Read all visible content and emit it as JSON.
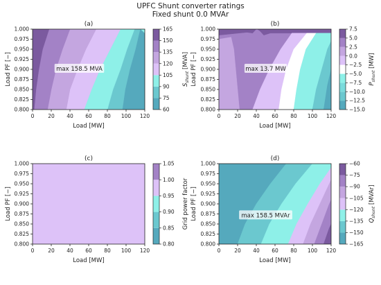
{
  "figure": {
    "title_line1": "UPFC Shunt converter ratings",
    "title_line2": "Fixed shunt 0.0 MVAr"
  },
  "colors": {
    "dark_purple": "#7b5a9f",
    "mid_purple": "#a382c6",
    "light_purple": "#c4a6e0",
    "lavender": "#ddc2f8",
    "white": "#ffffff",
    "aqua": "#8ef0e8",
    "teal": "#6bc8cf",
    "deep_teal": "#55a9bd"
  },
  "chart_data": [
    {
      "id": "a",
      "type": "contour",
      "panel_label": "(a)",
      "xlabel": "Load [MW]",
      "ylabel": "Load PF [−]",
      "xlim": [
        0,
        120
      ],
      "ylim": [
        0.8,
        1.0
      ],
      "xticks": [
        "0",
        "20",
        "40",
        "60",
        "80",
        "100",
        "120"
      ],
      "yticks": [
        "0.800",
        "0.825",
        "0.850",
        "0.875",
        "0.900",
        "0.925",
        "0.950",
        "0.975",
        "1.000"
      ],
      "annotation": "max 158.5 MVA",
      "annotation_at": [
        50,
        0.9
      ],
      "colorbar": {
        "label_main": "S",
        "label_sub": "shunt",
        "label_unit": " [MVA]",
        "ticks": [
          "60",
          "75",
          "90",
          "105",
          "120",
          "135",
          "150",
          "165"
        ],
        "range": [
          60,
          165
        ],
        "bands": [
          {
            "from": 60,
            "to": 75,
            "color": "#55a9bd"
          },
          {
            "from": 75,
            "to": 90,
            "color": "#6bc8cf"
          },
          {
            "from": 90,
            "to": 105,
            "color": "#8ef0e8"
          },
          {
            "from": 105,
            "to": 120,
            "color": "#ddc2f8"
          },
          {
            "from": 120,
            "to": 135,
            "color": "#c4a6e0"
          },
          {
            "from": 135,
            "to": 150,
            "color": "#a382c6"
          },
          {
            "from": 150,
            "to": 165,
            "color": "#7b5a9f"
          }
        ]
      },
      "regions": [
        {
          "color": "#55a9bd",
          "pts": [
            [
              120,
              0.8
            ],
            [
              120,
              0.99
            ],
            [
              115,
              1.0
            ],
            [
              110,
              0.95
            ],
            [
              104,
              0.9
            ],
            [
              99,
              0.85
            ],
            [
              96,
              0.8
            ]
          ]
        },
        {
          "color": "#6bc8cf",
          "pts": [
            [
              96,
              0.8
            ],
            [
              99,
              0.85
            ],
            [
              104,
              0.9
            ],
            [
              110,
              0.95
            ],
            [
              115,
              1.0
            ],
            [
              120,
              0.99
            ],
            [
              120,
              1.0
            ],
            [
              109,
              1.0
            ],
            [
              101,
              0.95
            ],
            [
              94,
              0.9
            ],
            [
              86,
              0.85
            ],
            [
              80,
              0.8
            ]
          ]
        },
        {
          "color": "#8ef0e8",
          "pts": [
            [
              80,
              0.8
            ],
            [
              86,
              0.85
            ],
            [
              94,
              0.9
            ],
            [
              101,
              0.95
            ],
            [
              109,
              1.0
            ],
            [
              116,
              1.0
            ],
            [
              120,
              0.99
            ],
            [
              120,
              1.0
            ],
            [
              94,
              1.0
            ],
            [
              83,
              0.95
            ],
            [
              72,
              0.9
            ],
            [
              63,
              0.85
            ],
            [
              55,
              0.8
            ]
          ]
        },
        {
          "color": "#ddc2f8",
          "pts": [
            [
              55,
              0.8
            ],
            [
              63,
              0.85
            ],
            [
              72,
              0.9
            ],
            [
              83,
              0.95
            ],
            [
              94,
              1.0
            ],
            [
              68,
              1.0
            ],
            [
              57,
              0.95
            ],
            [
              48,
              0.9
            ],
            [
              40,
              0.85
            ],
            [
              36,
              0.8
            ]
          ]
        },
        {
          "color": "#c4a6e0",
          "pts": [
            [
              36,
              0.8
            ],
            [
              40,
              0.85
            ],
            [
              48,
              0.9
            ],
            [
              57,
              0.95
            ],
            [
              68,
              1.0
            ],
            [
              40,
              1.0
            ],
            [
              32,
              0.95
            ],
            [
              25,
              0.9
            ],
            [
              20,
              0.85
            ],
            [
              16,
              0.8
            ]
          ]
        },
        {
          "color": "#a382c6",
          "pts": [
            [
              16,
              0.8
            ],
            [
              20,
              0.85
            ],
            [
              25,
              0.9
            ],
            [
              32,
              0.95
            ],
            [
              40,
              1.0
            ],
            [
              18,
              1.0
            ],
            [
              11,
              0.95
            ],
            [
              7,
              0.9
            ],
            [
              4,
              0.85
            ],
            [
              2,
              0.8
            ]
          ]
        }
      ],
      "background": "#7b5a9f"
    },
    {
      "id": "b",
      "type": "contour",
      "panel_label": "(b)",
      "xlabel": "Load [MW]",
      "ylabel": "Load PF [−]",
      "xlim": [
        0,
        120
      ],
      "ylim": [
        0.8,
        1.0
      ],
      "xticks": [
        "0",
        "20",
        "40",
        "60",
        "80",
        "100",
        "120"
      ],
      "yticks": [
        "0.800",
        "0.825",
        "0.850",
        "0.875",
        "0.900",
        "0.925",
        "0.950",
        "0.975",
        "1.000"
      ],
      "annotation": "max 13.7 MW",
      "annotation_at": [
        50,
        0.9
      ],
      "colorbar": {
        "label_main": "P",
        "label_sub": "shunt",
        "label_unit": " [MW]",
        "ticks": [
          "−15.0",
          "−12.5",
          "−10.0",
          "−7.5",
          "−5.0",
          "−2.5",
          "0.0",
          "2.5",
          "5.0",
          "7.5"
        ],
        "range": [
          -15,
          7.5
        ],
        "bands": [
          {
            "from": -15,
            "to": -12.5,
            "color": "#55a9bd"
          },
          {
            "from": -12.5,
            "to": -10,
            "color": "#6bc8cf"
          },
          {
            "from": -10,
            "to": -7.5,
            "color": "#7adbdc"
          },
          {
            "from": -7.5,
            "to": -5,
            "color": "#8ef0e8"
          },
          {
            "from": -5,
            "to": -2.5,
            "color": "#ffffff"
          },
          {
            "from": -2.5,
            "to": 0,
            "color": "#ddc2f8"
          },
          {
            "from": 0,
            "to": 2.5,
            "color": "#c4a6e0"
          },
          {
            "from": 2.5,
            "to": 5,
            "color": "#a382c6"
          },
          {
            "from": 5,
            "to": 7.5,
            "color": "#7b5a9f"
          }
        ]
      },
      "regions": [
        {
          "color": "#7b5a9f",
          "pts": [
            [
              0,
              0.98
            ],
            [
              0,
              1.0
            ],
            [
              120,
              1.0
            ],
            [
              120,
              0.99
            ],
            [
              55,
              0.99
            ],
            [
              48,
              0.985
            ],
            [
              44,
              0.995
            ],
            [
              41,
              1.0
            ],
            [
              40,
              1.0
            ],
            [
              36,
              0.99
            ],
            [
              30,
              0.992
            ],
            [
              0,
              0.985
            ]
          ]
        },
        {
          "color": "#c4a6e0",
          "pts": [
            [
              0,
              0.8
            ],
            [
              22,
              0.8
            ],
            [
              20,
              0.85
            ],
            [
              18,
              0.9
            ],
            [
              16,
              0.95
            ],
            [
              13,
              0.98
            ],
            [
              0,
              0.975
            ]
          ]
        },
        {
          "color": "#ddc2f8",
          "pts": [
            [
              36,
              0.8
            ],
            [
              44,
              0.85
            ],
            [
              54,
              0.9
            ],
            [
              66,
              0.95
            ],
            [
              78,
              0.99
            ],
            [
              94,
              0.99
            ],
            [
              80,
              0.95
            ],
            [
              72,
              0.9
            ],
            [
              67,
              0.85
            ],
            [
              64,
              0.8
            ]
          ]
        },
        {
          "color": "#ffffff",
          "pts": [
            [
              64,
              0.8
            ],
            [
              67,
              0.85
            ],
            [
              72,
              0.9
            ],
            [
              80,
              0.95
            ],
            [
              94,
              0.99
            ],
            [
              104,
              0.99
            ],
            [
              93,
              0.95
            ],
            [
              87,
              0.9
            ],
            [
              83,
              0.85
            ],
            [
              80,
              0.8
            ]
          ]
        },
        {
          "color": "#8ef0e8",
          "pts": [
            [
              80,
              0.8
            ],
            [
              83,
              0.85
            ],
            [
              87,
              0.9
            ],
            [
              93,
              0.95
            ],
            [
              104,
              0.99
            ],
            [
              120,
              0.99
            ],
            [
              120,
              0.87
            ],
            [
              112,
              0.8
            ]
          ]
        },
        {
          "color": "#6bc8cf",
          "pts": [
            [
              100,
              0.8
            ],
            [
              104,
              0.85
            ],
            [
              110,
              0.9
            ],
            [
              116,
              0.95
            ],
            [
              120,
              0.97
            ],
            [
              120,
              0.8
            ]
          ]
        },
        {
          "color": "#55a9bd",
          "pts": [
            [
              112,
              0.8
            ],
            [
              116,
              0.86
            ],
            [
              120,
              0.9
            ],
            [
              120,
              0.8
            ]
          ]
        }
      ],
      "background": "#a382c6"
    },
    {
      "id": "c",
      "type": "contour",
      "panel_label": "(c)",
      "xlabel": "Load [MW]",
      "ylabel": "Load PF [−]",
      "xlim": [
        0,
        120
      ],
      "ylim": [
        0.8,
        1.0
      ],
      "xticks": [
        "0",
        "20",
        "40",
        "60",
        "80",
        "100",
        "120"
      ],
      "yticks": [
        "0.800",
        "0.825",
        "0.850",
        "0.875",
        "0.900",
        "0.925",
        "0.950",
        "0.975",
        "1.000"
      ],
      "annotation": "",
      "colorbar": {
        "label_main": "Grid power factor",
        "label_sub": "",
        "label_unit": "",
        "ticks": [
          "0.80",
          "0.85",
          "0.90",
          "0.95",
          "1.00",
          "1.05"
        ],
        "range": [
          0.8,
          1.05
        ],
        "bands": [
          {
            "from": 0.8,
            "to": 0.85,
            "color": "#55a9bd"
          },
          {
            "from": 0.85,
            "to": 0.9,
            "color": "#6bc8cf"
          },
          {
            "from": 0.9,
            "to": 0.95,
            "color": "#8ef0e8"
          },
          {
            "from": 0.95,
            "to": 1.0,
            "color": "#ddc2f8"
          },
          {
            "from": 1.0,
            "to": 1.05,
            "color": "#a382c6"
          }
        ]
      },
      "regions": [],
      "background": "#ddc2f8"
    },
    {
      "id": "d",
      "type": "contour",
      "panel_label": "(d)",
      "xlabel": "Load [MW]",
      "ylabel": "Load PF [−]",
      "xlim": [
        0,
        120
      ],
      "ylim": [
        0.8,
        1.0
      ],
      "xticks": [
        "0",
        "20",
        "40",
        "60",
        "80",
        "100",
        "120"
      ],
      "yticks": [
        "0.800",
        "0.825",
        "0.850",
        "0.875",
        "0.900",
        "0.925",
        "0.950",
        "0.975",
        "1.000"
      ],
      "annotation": "max 158.5 MVAr",
      "annotation_at": [
        50,
        0.87
      ],
      "colorbar": {
        "label_main": "Q",
        "label_sub": "shunt",
        "label_unit": " [MVAr]",
        "ticks": [
          "−165",
          "−150",
          "−135",
          "−120",
          "−105",
          "−90",
          "−75",
          "−60"
        ],
        "range": [
          -165,
          -60
        ],
        "bands": [
          {
            "from": -165,
            "to": -150,
            "color": "#55a9bd"
          },
          {
            "from": -150,
            "to": -135,
            "color": "#6bc8cf"
          },
          {
            "from": -135,
            "to": -120,
            "color": "#8ef0e8"
          },
          {
            "from": -120,
            "to": -105,
            "color": "#ddc2f8"
          },
          {
            "from": -105,
            "to": -90,
            "color": "#c4a6e0"
          },
          {
            "from": -90,
            "to": -75,
            "color": "#a382c6"
          },
          {
            "from": -75,
            "to": -60,
            "color": "#7b5a9f"
          }
        ]
      },
      "regions": [
        {
          "color": "#6bc8cf",
          "pts": [
            [
              20,
              0.8
            ],
            [
              28,
              0.85
            ],
            [
              40,
              0.9
            ],
            [
              55,
              0.95
            ],
            [
              72,
              1.0
            ],
            [
              120,
              1.0
            ],
            [
              120,
              0.8
            ]
          ]
        },
        {
          "color": "#8ef0e8",
          "pts": [
            [
              45,
              0.8
            ],
            [
              54,
              0.85
            ],
            [
              67,
              0.9
            ],
            [
              82,
              0.95
            ],
            [
              100,
              1.0
            ],
            [
              120,
              1.0
            ],
            [
              120,
              0.8
            ]
          ]
        },
        {
          "color": "#ddc2f8",
          "pts": [
            [
              74,
              0.8
            ],
            [
              83,
              0.85
            ],
            [
              95,
              0.9
            ],
            [
              108,
              0.95
            ],
            [
              120,
              0.99
            ],
            [
              120,
              0.8
            ]
          ]
        },
        {
          "color": "#c4a6e0",
          "pts": [
            [
              90,
              0.8
            ],
            [
              98,
              0.85
            ],
            [
              108,
              0.9
            ],
            [
              118,
              0.95
            ],
            [
              120,
              0.96
            ],
            [
              120,
              0.8
            ]
          ]
        },
        {
          "color": "#a382c6",
          "pts": [
            [
              102,
              0.8
            ],
            [
              110,
              0.85
            ],
            [
              118,
              0.9
            ],
            [
              120,
              0.91
            ],
            [
              120,
              0.8
            ]
          ]
        },
        {
          "color": "#7b5a9f",
          "pts": [
            [
              112,
              0.8
            ],
            [
              118,
              0.84
            ],
            [
              120,
              0.85
            ],
            [
              120,
              0.8
            ]
          ]
        }
      ],
      "background": "#55a9bd"
    }
  ]
}
